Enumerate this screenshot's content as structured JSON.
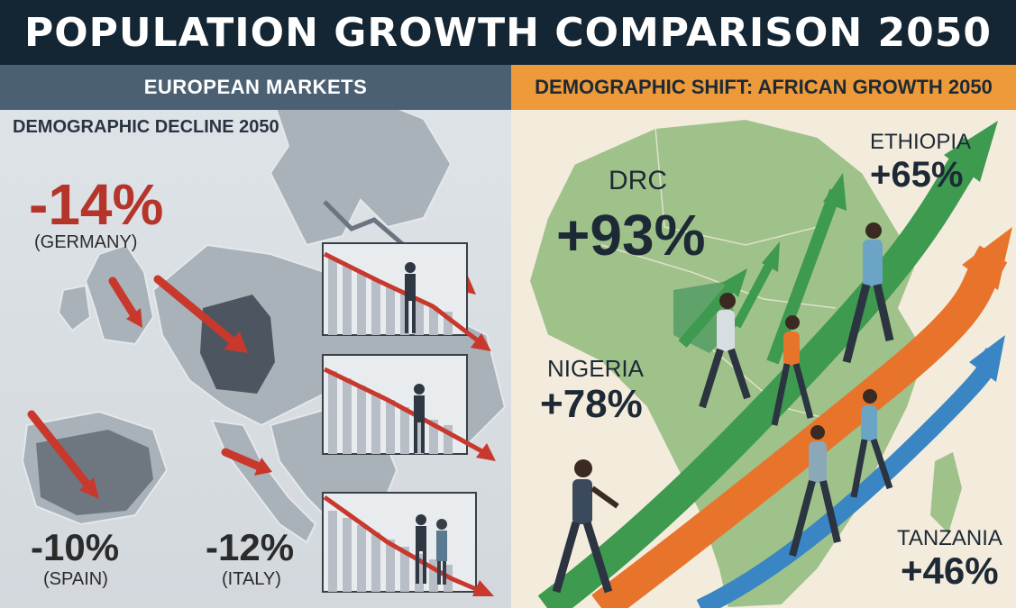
{
  "title": "POPULATION GROWTH COMPARISON 2050",
  "left_panel": {
    "header": "EUROPEAN MARKETS",
    "subtitle": "DEMOGRAPHIC DECLINE 2050",
    "countries": [
      {
        "name": "(GERMANY)",
        "change": "-14%"
      },
      {
        "name": "(SPAIN)",
        "change": "-10%"
      },
      {
        "name": "(ITALY)",
        "change": "-12%"
      }
    ]
  },
  "right_panel": {
    "header": "DEMOGRAPHIC SHIFT: AFRICAN GROWTH 2050",
    "countries": [
      {
        "name": "DRC",
        "change": "+93%"
      },
      {
        "name": "ETHIOPIA",
        "change": "+65%"
      },
      {
        "name": "NIGERIA",
        "change": "+78%"
      },
      {
        "name": "TANZANIA",
        "change": "+46%"
      }
    ]
  },
  "colors": {
    "title_bg": "#142533",
    "europe_header": "#4b6173",
    "africa_header": "#ec9a3a",
    "decline_red": "#c8382d",
    "growth_green": "#3d9a4f",
    "growth_orange": "#e8742c",
    "growth_blue": "#3a86c4"
  }
}
